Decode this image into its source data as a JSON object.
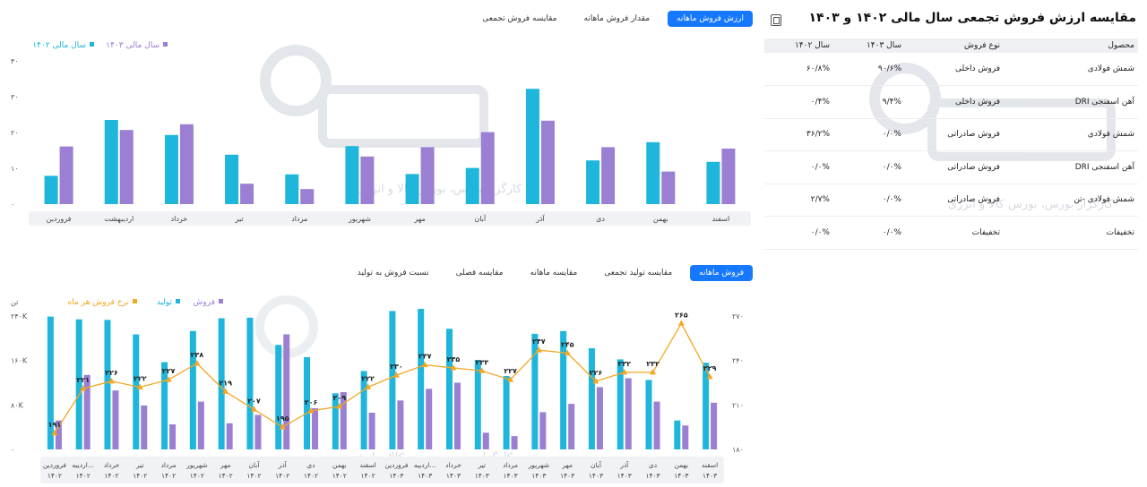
{
  "watermark": {
    "brand": "آگاه",
    "tagline": "کارگزار بورس، بورس کالا و انرژی"
  },
  "top_tabs": [
    {
      "label": "ارزش فروش ماهانه",
      "active": true
    },
    {
      "label": "مقدار فروش ماهانه",
      "active": false
    },
    {
      "label": "مقایسه فروش تجمعی",
      "active": false
    }
  ],
  "bottom_tabs": [
    {
      "label": "فروش ماهانه",
      "active": true
    },
    {
      "label": "مقایسه تولید تجمعی",
      "active": false
    },
    {
      "label": "مقایسه ماهانه",
      "active": false
    },
    {
      "label": "مقایسه فصلی",
      "active": false
    },
    {
      "label": "نسبت فروش به تولید",
      "active": false
    }
  ],
  "colors": {
    "cyan": "#1fb6dc",
    "purple": "#9b7fd3",
    "orange": "#f5a623",
    "active_tab": "#1677ff"
  },
  "table_panel": {
    "title": "مقایسه ارزش فروش تجمعی سال مالی ۱۴۰۲ و ۱۴۰۳",
    "export_icon": "export-icon",
    "headers": [
      "محصول",
      "نوع فروش",
      "سال ۱۴۰۳",
      "سال ۱۴۰۲"
    ],
    "rows": [
      [
        "شمش فولادی",
        "فروش داخلی",
        "۹۰/۶%",
        "۶۰/۸%"
      ],
      [
        "آهن اسفنجی DRI",
        "فروش داخلی",
        "۹/۴%",
        "۰/۴%"
      ],
      [
        "شمش فولادی",
        "فروش صادراتی",
        "۰/۰%",
        "۳۶/۲%"
      ],
      [
        "آهن اسفنجی DRI",
        "فروش صادراتی",
        "۰/۰%",
        "۰/۰%"
      ],
      [
        "شمش فولادی -تن",
        "فروش صادراتی",
        "۰/۰%",
        "۲/۷%"
      ],
      [
        "تخفیفات",
        "تخفیفات",
        "۰/۰%",
        "۰/۰%"
      ]
    ]
  },
  "chart_data": [
    {
      "type": "bar",
      "title": "",
      "legend": [
        "سال مالی ۱۴۰۳",
        "سال مالی ۱۴۰۲"
      ],
      "legend_placement": "top-left",
      "categories": [
        "اسفند",
        "بهمن",
        "دی",
        "آذر",
        "آبان",
        "مهر",
        "شهریور",
        "مرداد",
        "تیر",
        "خرداد",
        "اردیبهشت",
        "فروردین"
      ],
      "series": [
        {
          "name": "سال مالی ۱۴۰۲",
          "color": "#1fb6dc",
          "values": [
            11.8,
            17.3,
            12.2,
            32.2,
            10.1,
            8.4,
            16.2,
            8.3,
            13.8,
            19.3,
            23.5,
            7.9
          ]
        },
        {
          "name": "سال مالی ۱۴۰۳",
          "color": "#9b7fd3",
          "values": [
            15.5,
            9.1,
            15.9,
            23.3,
            20.1,
            15.9,
            13.3,
            4.2,
            5.7,
            22.3,
            20.7,
            16.1
          ]
        }
      ],
      "y_ticks": [
        "۰",
        "۱۰",
        "۲۰",
        "۳۰",
        "۴۰"
      ],
      "ylim": [
        0,
        40
      ],
      "grid": false
    },
    {
      "type": "bar",
      "title": "",
      "legend": [
        "فروش",
        "تولید",
        "نرخ فروش هر ماه"
      ],
      "legend_placement": "top-left",
      "left_axis_label": "تن",
      "categories": [
        [
          "فروردین",
          "۱۴۰۲"
        ],
        [
          "اردیبه...",
          "۱۴۰۲"
        ],
        [
          "خرداد",
          "۱۴۰۲"
        ],
        [
          "تیر",
          "۱۴۰۲"
        ],
        [
          "مرداد",
          "۱۴۰۲"
        ],
        [
          "شهریور",
          "۱۴۰۲"
        ],
        [
          "مهر",
          "۱۴۰۲"
        ],
        [
          "آبان",
          "۱۴۰۲"
        ],
        [
          "آذر",
          "۱۴۰۲"
        ],
        [
          "دی",
          "۱۴۰۲"
        ],
        [
          "بهمن",
          "۱۴۰۲"
        ],
        [
          "اسفند",
          "۱۴۰۲"
        ],
        [
          "فروردین",
          "۱۴۰۳"
        ],
        [
          "اردیبه...",
          "۱۴۰۳"
        ],
        [
          "خرداد",
          "۱۴۰۳"
        ],
        [
          "تیر",
          "۱۴۰۳"
        ],
        [
          "مرداد",
          "۱۴۰۳"
        ],
        [
          "شهریور",
          "۱۴۰۳"
        ],
        [
          "مهر",
          "۱۴۰۳"
        ],
        [
          "آبان",
          "۱۴۰۳"
        ],
        [
          "آذر",
          "۱۴۰۳"
        ],
        [
          "دی",
          "۱۴۰۳"
        ],
        [
          "بهمن",
          "۱۴۰۳"
        ],
        [
          "اسفند",
          "۱۴۰۳"
        ]
      ],
      "series": [
        {
          "name": "تولید",
          "color": "#1fb6dc",
          "axis": "left",
          "values": [
            239000,
            234000,
            233000,
            207000,
            157000,
            213000,
            236000,
            237000,
            188000,
            166000,
            101000,
            141000,
            249000,
            253000,
            217000,
            161000,
            132000,
            208000,
            213000,
            182000,
            162000,
            125000,
            52000,
            156000
          ]
        },
        {
          "name": "فروش",
          "color": "#9b7fd3",
          "axis": "left",
          "values": [
            52000,
            134000,
            106000,
            79000,
            45000,
            86000,
            47000,
            62000,
            207000,
            74000,
            103000,
            66000,
            88000,
            109000,
            120000,
            30000,
            24000,
            67000,
            82000,
            112000,
            128000,
            86000,
            43000,
            84000
          ]
        },
        {
          "name": "نرخ فروش هر ماه",
          "color": "#f5a623",
          "axis": "right",
          "type": "line",
          "values": [
            191,
            221,
            226,
            222,
            227,
            238,
            219,
            207,
            195,
            206,
            209,
            222,
            230,
            237,
            235,
            233,
            227,
            247,
            245,
            226,
            232,
            232,
            265,
            229
          ],
          "labels": [
            "۱۹۱",
            "۲۲۱",
            "۲۲۶",
            "۲۲۲",
            "۲۲۷",
            "۲۳۸",
            "۲۱۹",
            "۲۰۷",
            "۱۹۵",
            "۲۰۶",
            "۲۰۹",
            "۲۲۲",
            "۲۳۰",
            "۲۳۷",
            "۲۳۵",
            "۲۳۳",
            "۲۲۷",
            "۲۴۷",
            "۲۴۵",
            "۲۲۶",
            "۲۳۲",
            "۲۳۲",
            "۲۶۵",
            "۲۲۹"
          ]
        }
      ],
      "left_ticks": [
        "۰",
        "۸۰K",
        "۱۶۰K",
        "۲۴۰K"
      ],
      "left_lim": [
        0,
        240000
      ],
      "right_ticks": [
        "۱۸۰",
        "۲۱۰",
        "۲۴۰",
        "۲۷۰"
      ],
      "right_lim": [
        180,
        270
      ],
      "grid": false
    }
  ]
}
